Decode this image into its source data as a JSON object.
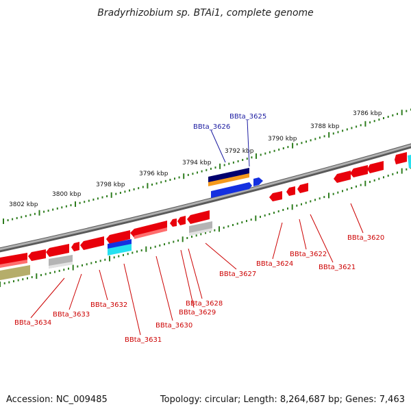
{
  "header": {
    "title": "Bradyrhizobium sp. BTAi1, complete genome"
  },
  "footer": {
    "accession": "Accession: NC_009485",
    "summary": "Topology: circular; Length: 8,264,687 bp; Genes: 7,463"
  },
  "scale_labels": [
    "3786 kbp",
    "3788 kbp",
    "3790 kbp",
    "3792 kbp",
    "3794 kbp",
    "3796 kbp",
    "3798 kbp",
    "3800 kbp",
    "3802 kbp"
  ],
  "colors": {
    "backbone": "#8a8a8a",
    "tick": "#2e7d1e",
    "forward_label": "#1a1aa0",
    "reverse_label": "#cc0000",
    "cds": "#e8000b",
    "rna": "#1430e0",
    "gray": "#b4b4b4",
    "olive": "#b5ad6a",
    "cyan": "#26e0f0"
  },
  "gene_labels_forward": [
    "BBta_3625",
    "BBta_3626"
  ],
  "gene_labels_reverse": [
    "BBta_3620",
    "BBta_3621",
    "BBta_3622",
    "BBta_3624",
    "BBta_3627",
    "BBta_3628",
    "BBta_3629",
    "BBta_3630",
    "BBta_3631",
    "BBta_3632",
    "BBta_3633",
    "BBta_3634"
  ]
}
